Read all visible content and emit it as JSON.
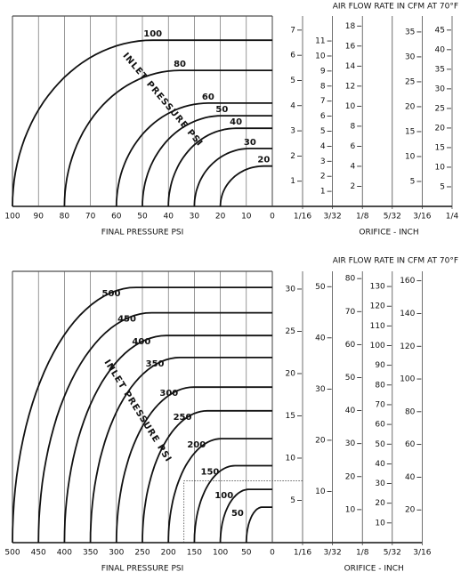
{
  "chart_data": [
    {
      "type": "nomograph",
      "title": "AIR FLOW RATE IN CFM AT 70°F",
      "xlabel": "FINAL PRESSURE PSI",
      "orifice_label": "ORIFICE - INCH",
      "annotation": "INLET PRESSURE PSI",
      "xlim": [
        100,
        0
      ],
      "xticks": [
        100,
        90,
        80,
        70,
        60,
        50,
        40,
        30,
        20,
        10,
        0
      ],
      "orifice_ticks": [
        "1/16",
        "3/32",
        "1/8",
        "5/32",
        "3/16",
        "1/4"
      ],
      "curves": [
        {
          "label": "100",
          "inlet": 100,
          "choke": 46,
          "flow": 6.6
        },
        {
          "label": "80",
          "inlet": 80,
          "choke": 35.6,
          "flow": 5.4
        },
        {
          "label": "60",
          "inlet": 60,
          "choke": 24.7,
          "flow": 4.1
        },
        {
          "label": "50",
          "inlet": 50,
          "choke": 19.4,
          "flow": 3.6
        },
        {
          "label": "40",
          "inlet": 40,
          "choke": 14,
          "flow": 3.1
        },
        {
          "label": "30",
          "inlet": 30,
          "choke": 8.6,
          "flow": 2.3
        },
        {
          "label": "20",
          "inlet": 20,
          "choke": 3.3,
          "flow": 1.6
        }
      ],
      "scales": [
        {
          "orifice": 0,
          "ylim": [
            0,
            7.56
          ],
          "yticks": [
            1,
            2,
            3,
            4,
            5,
            6,
            7
          ]
        },
        {
          "orifice": 1,
          "ylim": [
            0,
            12.66
          ],
          "yticks": [
            1,
            2,
            3,
            4,
            5,
            6,
            7,
            8,
            9,
            10,
            11
          ]
        },
        {
          "orifice": 2,
          "ylim": [
            0,
            19.0
          ],
          "yticks": [
            2,
            4,
            6,
            8,
            10,
            12,
            14,
            16,
            18
          ]
        },
        {
          "orifice": 4,
          "ylim": [
            0,
            38.2
          ],
          "yticks": [
            5,
            10,
            15,
            20,
            25,
            30,
            35
          ]
        },
        {
          "orifice": 5,
          "ylim": [
            0,
            48.6
          ],
          "yticks": [
            5,
            10,
            15,
            20,
            25,
            30,
            35,
            40,
            45
          ]
        }
      ]
    },
    {
      "type": "nomograph",
      "title": "AIR FLOW RATE IN CFM AT 70°F",
      "xlabel": "FINAL PRESSURE PSI",
      "orifice_label": "ORIFICE - INCH",
      "annotation": "INLET PRESSURE PSI",
      "xlim": [
        500,
        0
      ],
      "xticks": [
        500,
        450,
        400,
        350,
        300,
        250,
        200,
        150,
        100,
        50,
        0
      ],
      "orifice_ticks": [
        "1/16",
        "3/32",
        "1/8",
        "5/32",
        "3/16"
      ],
      "curves": [
        {
          "label": "500",
          "inlet": 500,
          "choke": 262,
          "flow": 30.2
        },
        {
          "label": "450",
          "inlet": 450,
          "choke": 232,
          "flow": 27.2
        },
        {
          "label": "400",
          "inlet": 400,
          "choke": 204,
          "flow": 24.5
        },
        {
          "label": "350",
          "inlet": 350,
          "choke": 178,
          "flow": 21.9
        },
        {
          "label": "300",
          "inlet": 300,
          "choke": 151,
          "flow": 18.4
        },
        {
          "label": "250",
          "inlet": 250,
          "choke": 125,
          "flow": 15.6
        },
        {
          "label": "200",
          "inlet": 200,
          "choke": 98,
          "flow": 12.3
        },
        {
          "label": "150",
          "inlet": 150,
          "choke": 72,
          "flow": 9.1
        },
        {
          "label": "100",
          "inlet": 100,
          "choke": 45,
          "flow": 6.3
        },
        {
          "label": "50",
          "inlet": 50,
          "choke": 19,
          "flow": 4.2
        }
      ],
      "example": {
        "x": 170,
        "y": 7.3
      },
      "scales": [
        {
          "orifice": 0,
          "ylim": [
            0,
            32.1
          ],
          "yticks": [
            5,
            10,
            15,
            20,
            25,
            30
          ]
        },
        {
          "orifice": 1,
          "ylim": [
            0,
            53
          ],
          "yticks": [
            10,
            20,
            30,
            40,
            50
          ]
        },
        {
          "orifice": 2,
          "ylim": [
            0,
            82.2
          ],
          "yticks": [
            10,
            20,
            30,
            40,
            50,
            60,
            70,
            80
          ]
        },
        {
          "orifice": 3,
          "ylim": [
            0,
            137.7
          ],
          "yticks": [
            10,
            20,
            30,
            40,
            50,
            60,
            70,
            80,
            90,
            100,
            110,
            120,
            130
          ]
        },
        {
          "orifice": 4,
          "ylim": [
            0,
            165.8
          ],
          "yticks": [
            20,
            40,
            60,
            80,
            100,
            120,
            140,
            160
          ]
        }
      ]
    }
  ]
}
